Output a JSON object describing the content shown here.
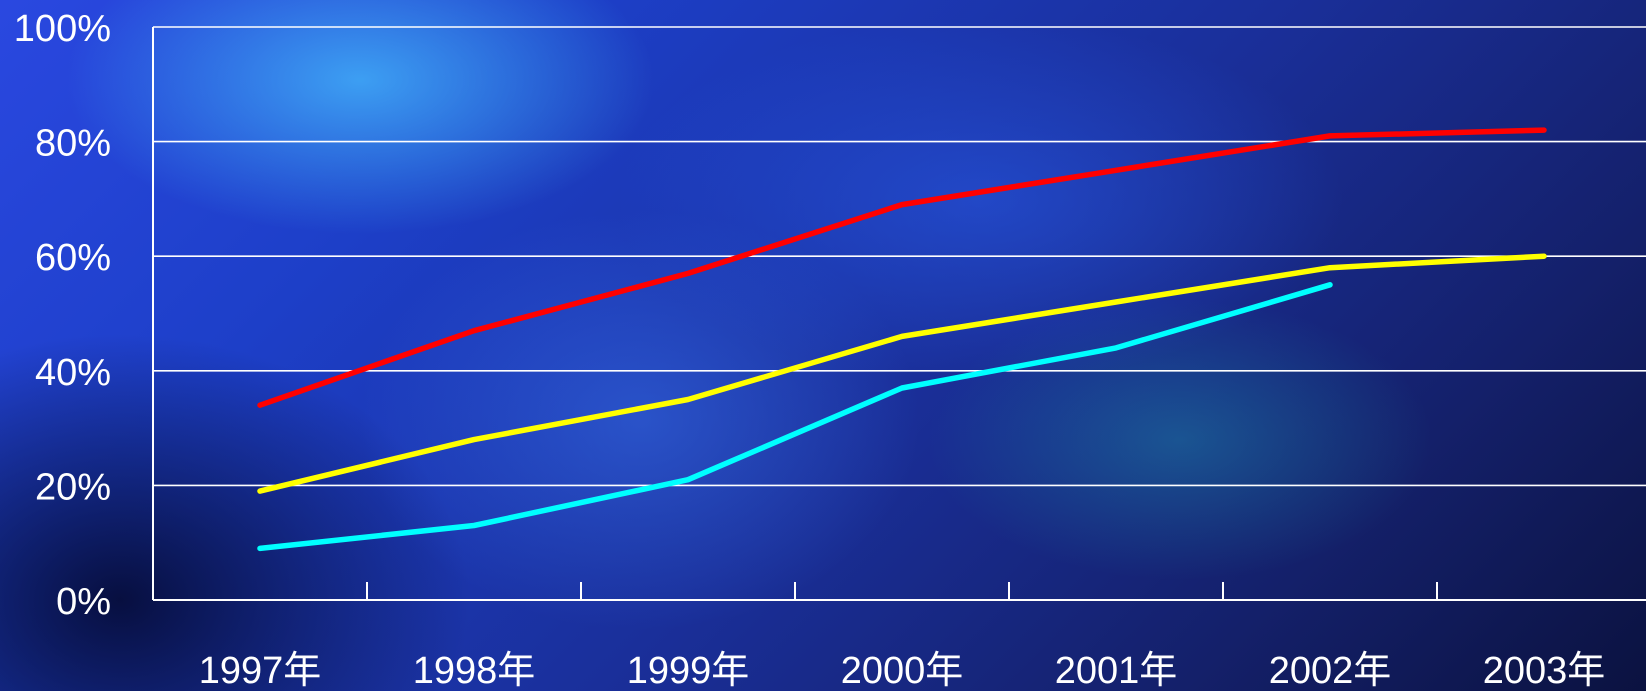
{
  "chart_data": {
    "type": "line",
    "categories": [
      "1997年",
      "1998年",
      "1999年",
      "2000年",
      "2001年",
      "2002年",
      "2003年"
    ],
    "y_tick_labels": [
      "0%",
      "20%",
      "40%",
      "60%",
      "80%",
      "100%"
    ],
    "ylim": [
      0,
      100
    ],
    "grid": true,
    "legend": "none",
    "series": [
      {
        "color": "#ff0000",
        "values": [
          34,
          47,
          57,
          69,
          75,
          81,
          82
        ]
      },
      {
        "color": "#ffff00",
        "values": [
          19,
          28,
          35,
          46,
          52,
          58,
          60
        ]
      },
      {
        "color": "#00ffff",
        "values": [
          9,
          13,
          21,
          37,
          44,
          55,
          null
        ]
      }
    ]
  }
}
